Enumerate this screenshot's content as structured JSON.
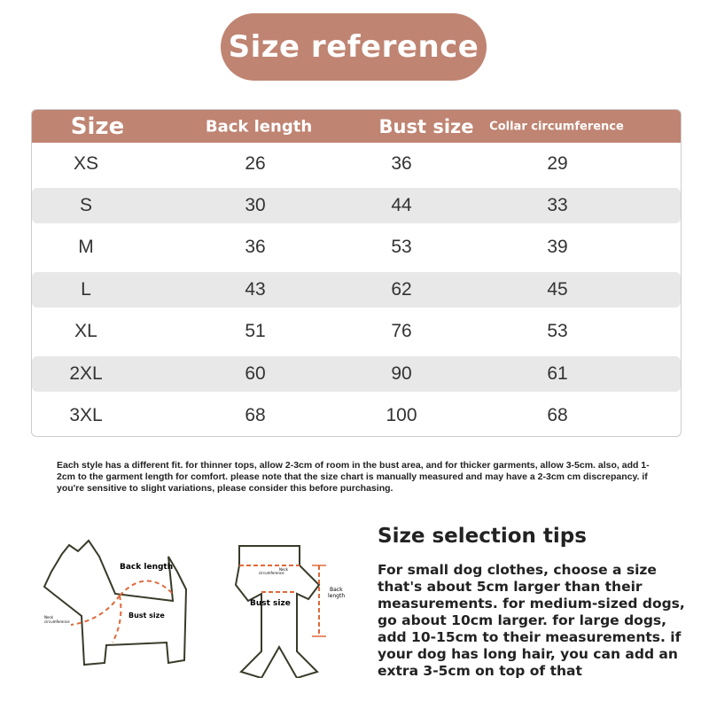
{
  "title": "Size reference",
  "table": {
    "headers": [
      "Size",
      "Back length",
      "Bust size",
      "Collar circumference"
    ],
    "rows": [
      [
        "XS",
        "26",
        "36",
        "29"
      ],
      [
        "S",
        "30",
        "44",
        "33"
      ],
      [
        "M",
        "36",
        "53",
        "39"
      ],
      [
        "L",
        "43",
        "62",
        "45"
      ],
      [
        "XL",
        "51",
        "76",
        "53"
      ],
      [
        "2XL",
        "60",
        "90",
        "61"
      ],
      [
        "3XL",
        "68",
        "100",
        "68"
      ]
    ]
  },
  "note": "Each style has a different fit. for thinner tops, allow 2-3cm of room in the bust area, and for thicker garments, allow 3-5cm. also, add 1-2cm to the garment length for comfort. please note that the size chart is manually measured and may have a 2-3cm cm discrepancy. if you're sensitive to slight variations, please consider this before purchasing.",
  "diagram": {
    "dog": {
      "back_length": "Back length",
      "bust_size": "Bust size",
      "neck_1": "Neck",
      "neck_2": "circumference"
    },
    "garment": {
      "neck_1": "Neck",
      "neck_2": "circumference",
      "bust_size": "Bust size",
      "back_1": "Back",
      "back_2": "length"
    }
  },
  "tips": {
    "title": "Size selection tips",
    "body": "For small dog clothes, choose a size that's about 5cm larger than their measurements. for medium-sized dogs, go about 10cm larger. for large dogs, add 10-15cm to their measurements. if your dog has long hair, you can add an extra 3-5cm on top of that"
  },
  "colors": {
    "accent": "#bf8472",
    "stripe": "#e8e8e8",
    "measure_line": "#e0683a"
  }
}
